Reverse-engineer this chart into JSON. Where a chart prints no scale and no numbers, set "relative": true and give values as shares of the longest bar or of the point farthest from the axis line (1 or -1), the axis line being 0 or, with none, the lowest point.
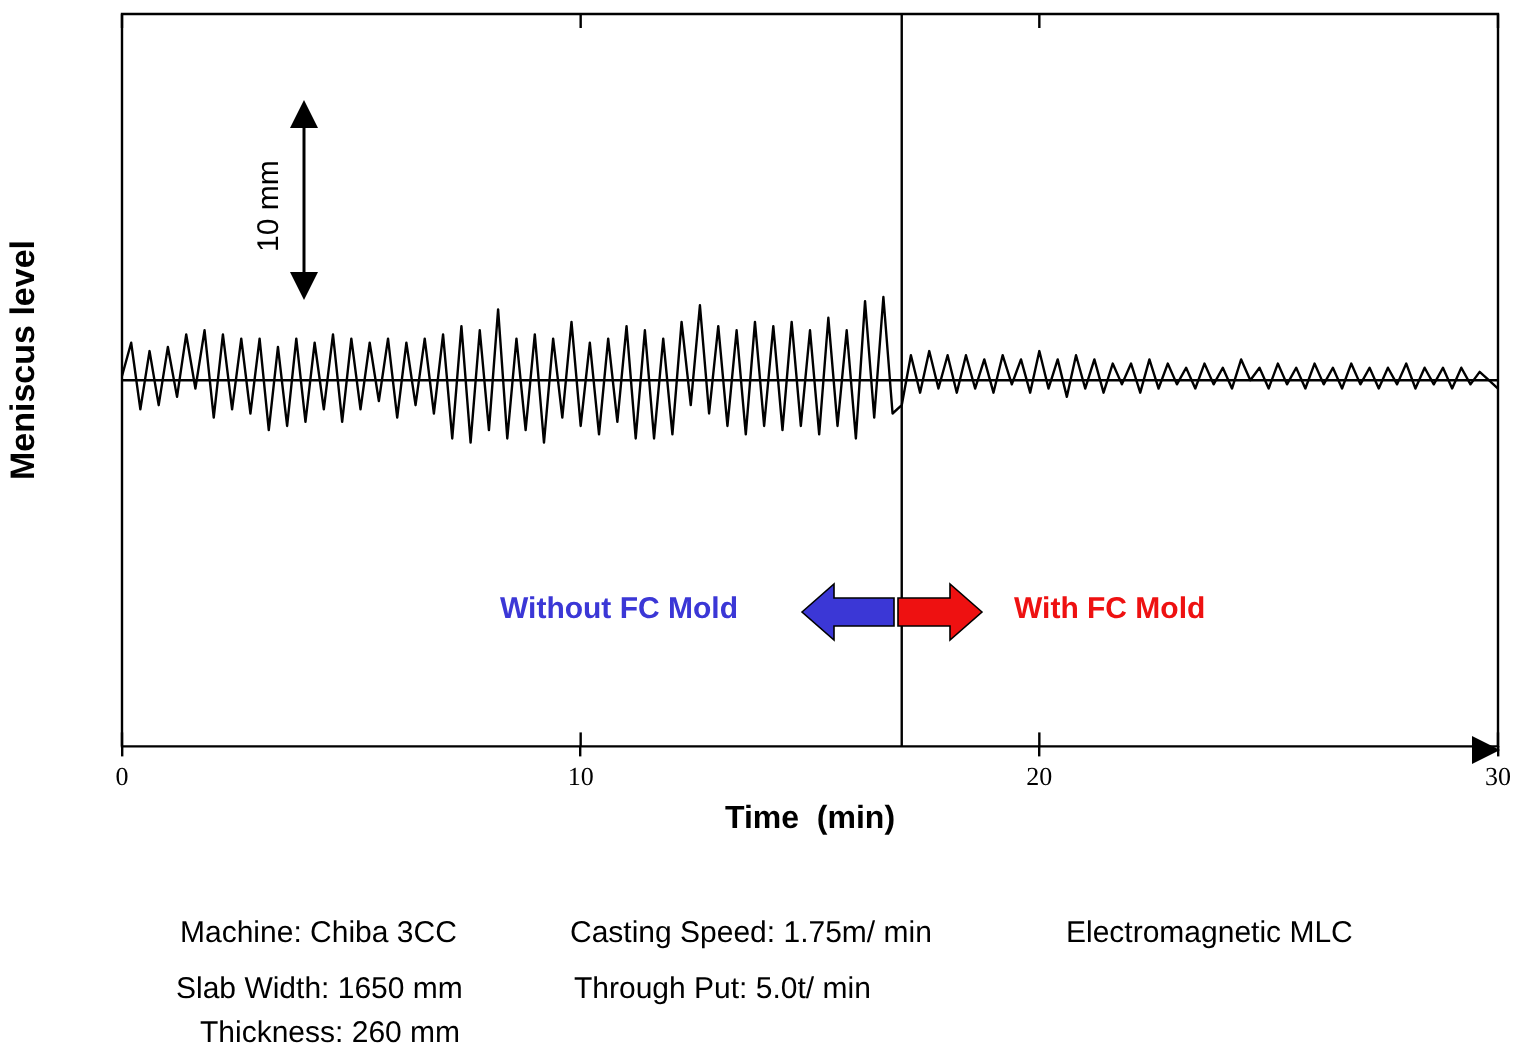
{
  "chart_data": {
    "type": "line",
    "xlabel": "Time  (min)",
    "ylabel": "Meniscus level",
    "relative": true,
    "x": [
      0,
      0.2,
      0.4,
      0.6,
      0.8,
      1,
      1.2,
      1.4,
      1.6,
      1.8,
      2,
      2.2,
      2.4,
      2.6,
      2.8,
      3,
      3.2,
      3.4,
      3.6,
      3.8,
      4,
      4.2,
      4.4,
      4.6,
      4.8,
      5,
      5.2,
      5.4,
      5.6,
      5.8,
      6,
      6.2,
      6.4,
      6.6,
      6.8,
      7,
      7.2,
      7.4,
      7.6,
      7.8,
      8,
      8.2,
      8.4,
      8.6,
      8.8,
      9,
      9.2,
      9.4,
      9.6,
      9.8,
      10,
      10.2,
      10.4,
      10.6,
      10.8,
      11,
      11.2,
      11.4,
      11.6,
      11.8,
      12,
      12.2,
      12.4,
      12.6,
      12.8,
      13,
      13.2,
      13.4,
      13.6,
      13.8,
      14,
      14.2,
      14.4,
      14.6,
      14.8,
      15,
      15.2,
      15.4,
      15.6,
      15.8,
      16,
      16.2,
      16.4,
      16.6,
      16.8,
      17,
      17.2,
      17.4,
      17.6,
      17.8,
      18,
      18.2,
      18.4,
      18.6,
      18.8,
      19,
      19.2,
      19.4,
      19.6,
      19.8,
      20,
      20.2,
      20.4,
      20.6,
      20.8,
      21,
      21.2,
      21.4,
      21.6,
      21.8,
      22,
      22.2,
      22.4,
      22.6,
      22.8,
      23,
      23.2,
      23.4,
      23.6,
      23.8,
      24,
      24.2,
      24.4,
      24.6,
      24.8,
      25,
      25.2,
      25.4,
      25.6,
      25.8,
      26,
      26.2,
      26.4,
      26.6,
      26.8,
      27,
      27.2,
      27.4,
      27.6,
      27.8,
      28,
      28.2,
      28.4,
      28.6,
      28.8,
      29,
      29.2,
      29.4,
      29.6,
      29.8,
      30
    ],
    "series": [
      {
        "color": "#000000",
        "values": [
          0.05,
          0.45,
          -0.35,
          0.35,
          -0.3,
          0.4,
          -0.2,
          0.55,
          -0.1,
          0.6,
          -0.45,
          0.55,
          -0.35,
          0.5,
          -0.4,
          0.5,
          -0.6,
          0.4,
          -0.55,
          0.5,
          -0.5,
          0.45,
          -0.35,
          0.55,
          -0.5,
          0.5,
          -0.35,
          0.45,
          -0.25,
          0.5,
          -0.45,
          0.45,
          -0.3,
          0.5,
          -0.4,
          0.55,
          -0.7,
          0.65,
          -0.75,
          0.6,
          -0.6,
          0.85,
          -0.7,
          0.5,
          -0.6,
          0.55,
          -0.75,
          0.5,
          -0.45,
          0.7,
          -0.55,
          0.45,
          -0.65,
          0.5,
          -0.5,
          0.65,
          -0.7,
          0.6,
          -0.7,
          0.5,
          -0.65,
          0.7,
          -0.3,
          0.9,
          -0.4,
          0.65,
          -0.55,
          0.6,
          -0.65,
          0.7,
          -0.55,
          0.65,
          -0.6,
          0.7,
          -0.55,
          0.6,
          -0.65,
          0.75,
          -0.55,
          0.6,
          -0.7,
          0.95,
          -0.45,
          1,
          -0.4,
          -0.3,
          0.3,
          -0.15,
          0.35,
          -0.1,
          0.3,
          -0.15,
          0.3,
          -0.1,
          0.25,
          -0.15,
          0.3,
          -0.05,
          0.25,
          -0.15,
          0.35,
          -0.1,
          0.25,
          -0.2,
          0.3,
          -0.1,
          0.25,
          -0.15,
          0.2,
          -0.05,
          0.2,
          -0.15,
          0.25,
          -0.1,
          0.2,
          -0.05,
          0.15,
          -0.1,
          0.2,
          -0.05,
          0.15,
          -0.1,
          0.25,
          0,
          0.15,
          -0.1,
          0.2,
          -0.05,
          0.15,
          -0.1,
          0.2,
          -0.05,
          0.15,
          -0.1,
          0.2,
          -0.05,
          0.15,
          -0.1,
          0.15,
          -0.05,
          0.2,
          -0.1,
          0.15,
          -0.05,
          0.15,
          -0.1,
          0.15,
          -0.05,
          0.1,
          0,
          -0.1
        ]
      }
    ],
    "xlim": [
      0,
      30
    ],
    "xticks": [
      0,
      10,
      20,
      30
    ],
    "ref_lines": [
      {
        "axis": "x",
        "value": 17,
        "color": "#000000"
      }
    ],
    "grid": false,
    "legend": false,
    "marker": "none",
    "line_style": "solid",
    "annotations": [
      "10 mm",
      "Without FC Mold",
      "With FC Mold",
      "Machine: Chiba 3CC",
      "Slab Width: 1650 mm",
      "Thickness: 260 mm",
      "Casting Speed: 1.75m/ min",
      "Through Put:  5.0t/ min",
      "Electromagnetic MLC"
    ]
  }
}
